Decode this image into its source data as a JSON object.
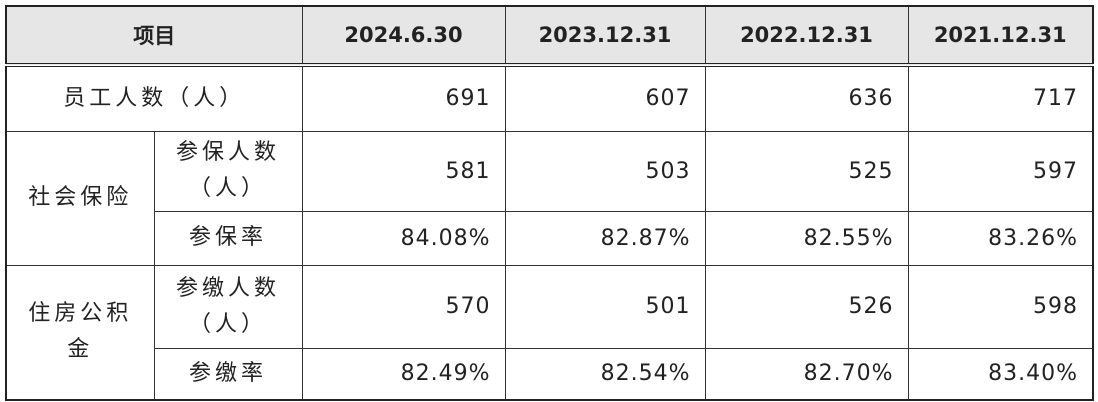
{
  "table": {
    "header": [
      "项目",
      "2024.6.30",
      "2023.12.31",
      "2022.12.31",
      "2021.12.31"
    ],
    "total": {
      "label": "员工人数（人）",
      "values": [
        "691",
        "607",
        "636",
        "717"
      ]
    },
    "groups": [
      {
        "label": "社会保险",
        "rows": [
          {
            "label": "参保人数（人）",
            "values": [
              "581",
              "503",
              "525",
              "597"
            ]
          },
          {
            "label": "参保率",
            "values": [
              "84.08%",
              "82.87%",
              "82.55%",
              "83.26%"
            ]
          }
        ]
      },
      {
        "label": "住房公积金",
        "rows": [
          {
            "label": "参缴人数（人）",
            "values": [
              "570",
              "501",
              "526",
              "598"
            ]
          },
          {
            "label": "参缴率",
            "values": [
              "82.49%",
              "82.54%",
              "82.70%",
              "83.40%"
            ]
          }
        ]
      }
    ]
  }
}
